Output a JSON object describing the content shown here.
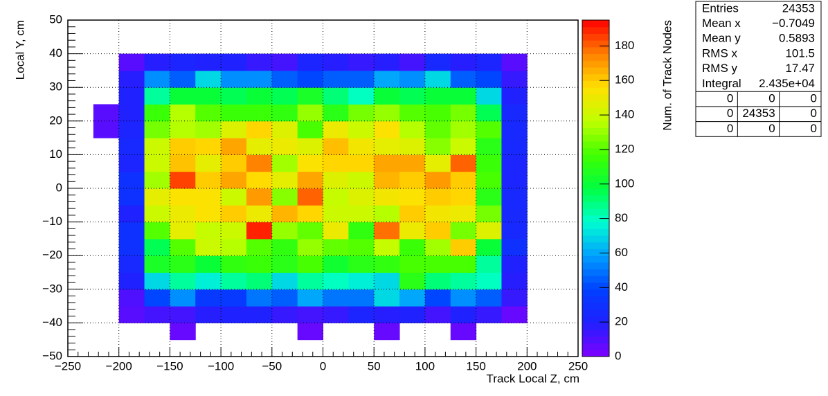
{
  "chart_data": {
    "type": "heatmap",
    "xlabel": "Track Local Z, cm",
    "ylabel": "Local Y, cm",
    "zlabel": "Num. of Track Nodes",
    "xlim": [
      -250,
      250
    ],
    "ylim": [
      -50,
      50
    ],
    "zlim": [
      0,
      195
    ],
    "xticks": [
      {
        "value": -250,
        "label": "−250"
      },
      {
        "value": -200,
        "label": "−200"
      },
      {
        "value": -150,
        "label": "−150"
      },
      {
        "value": -100,
        "label": "−100"
      },
      {
        "value": -50,
        "label": "−50"
      },
      0,
      50,
      100,
      150,
      200,
      250
    ],
    "yticks": [
      {
        "value": -50,
        "label": "−50"
      },
      {
        "value": -40,
        "label": "−40"
      },
      {
        "value": -30,
        "label": "−30"
      },
      {
        "value": -20,
        "label": "−20"
      },
      {
        "value": -10,
        "label": "−10"
      },
      0,
      10,
      20,
      30,
      40,
      50
    ],
    "zticks": [
      0,
      20,
      40,
      60,
      80,
      100,
      120,
      140,
      160,
      180
    ],
    "grid": true,
    "colormap": [
      "#8000ff",
      "#2020ff",
      "#0040ff",
      "#00a0ff",
      "#00ffd0",
      "#00ff40",
      "#40ff00",
      "#c0ff00",
      "#ffe000",
      "#ff8000",
      "#ff0000"
    ],
    "xbins": [
      -225,
      -200,
      -175,
      -150,
      -125,
      -100,
      -75,
      -50,
      -25,
      0,
      25,
      50,
      75,
      100,
      125,
      150,
      175,
      200
    ],
    "ybins": [
      -45,
      -40,
      -35,
      -30,
      -25,
      -20,
      -15,
      -10,
      -5,
      0,
      5,
      10,
      15,
      20,
      25,
      30,
      35,
      40
    ],
    "z": [
      [
        null,
        null,
        null,
        5,
        null,
        null,
        null,
        null,
        5,
        null,
        null,
        5,
        null,
        null,
        5,
        null,
        null
      ],
      [
        null,
        8,
        12,
        12,
        18,
        20,
        20,
        15,
        12,
        15,
        22,
        18,
        20,
        12,
        20,
        15,
        5
      ],
      [
        null,
        10,
        40,
        55,
        35,
        35,
        50,
        45,
        60,
        50,
        50,
        70,
        60,
        40,
        55,
        45,
        15
      ],
      [
        null,
        20,
        70,
        85,
        75,
        85,
        90,
        70,
        85,
        80,
        75,
        70,
        110,
        90,
        85,
        80,
        18
      ],
      [
        null,
        25,
        105,
        110,
        100,
        112,
        115,
        110,
        118,
        102,
        110,
        112,
        118,
        118,
        118,
        85,
        20
      ],
      [
        null,
        30,
        95,
        120,
        140,
        135,
        120,
        112,
        130,
        122,
        120,
        138,
        115,
        132,
        160,
        100,
        30
      ],
      [
        null,
        30,
        120,
        148,
        138,
        140,
        190,
        130,
        122,
        150,
        112,
        178,
        150,
        160,
        125,
        145,
        25
      ],
      [
        null,
        20,
        140,
        150,
        155,
        160,
        150,
        165,
        158,
        140,
        140,
        135,
        160,
        152,
        150,
        125,
        25
      ],
      [
        null,
        30,
        148,
        155,
        155,
        140,
        170,
        128,
        180,
        138,
        145,
        152,
        155,
        160,
        158,
        110,
        25
      ],
      [
        null,
        30,
        132,
        185,
        160,
        168,
        157,
        148,
        168,
        145,
        140,
        165,
        160,
        170,
        160,
        118,
        22
      ],
      [
        null,
        22,
        140,
        162,
        148,
        160,
        175,
        132,
        155,
        158,
        158,
        168,
        168,
        148,
        180,
        115,
        22
      ],
      [
        null,
        25,
        140,
        160,
        158,
        168,
        148,
        150,
        145,
        163,
        152,
        148,
        145,
        128,
        140,
        110,
        25
      ],
      [
        8,
        22,
        125,
        135,
        132,
        145,
        158,
        145,
        118,
        150,
        140,
        155,
        135,
        122,
        132,
        120,
        25
      ],
      [
        8,
        20,
        115,
        135,
        120,
        115,
        115,
        112,
        130,
        110,
        125,
        130,
        120,
        118,
        125,
        95,
        25
      ],
      [
        null,
        20,
        85,
        100,
        100,
        95,
        100,
        95,
        105,
        90,
        80,
        100,
        95,
        100,
        100,
        70,
        20
      ],
      [
        null,
        18,
        55,
        45,
        70,
        55,
        55,
        45,
        40,
        45,
        45,
        60,
        55,
        70,
        45,
        40,
        15
      ],
      [
        null,
        8,
        18,
        22,
        20,
        20,
        15,
        12,
        22,
        18,
        15,
        18,
        12,
        25,
        18,
        22,
        8
      ]
    ],
    "stats": {
      "rows": [
        [
          "Entries",
          "24353"
        ],
        [
          "Mean x",
          "−0.7049"
        ],
        [
          "Mean y",
          "0.5893"
        ],
        [
          "RMS x",
          "101.5"
        ],
        [
          "RMS y",
          "17.47"
        ],
        [
          "Integral",
          "2.435e+04"
        ]
      ],
      "table": [
        [
          "0",
          "0",
          "0"
        ],
        [
          "0",
          "24353",
          "0"
        ],
        [
          "0",
          "0",
          "0"
        ]
      ]
    }
  }
}
